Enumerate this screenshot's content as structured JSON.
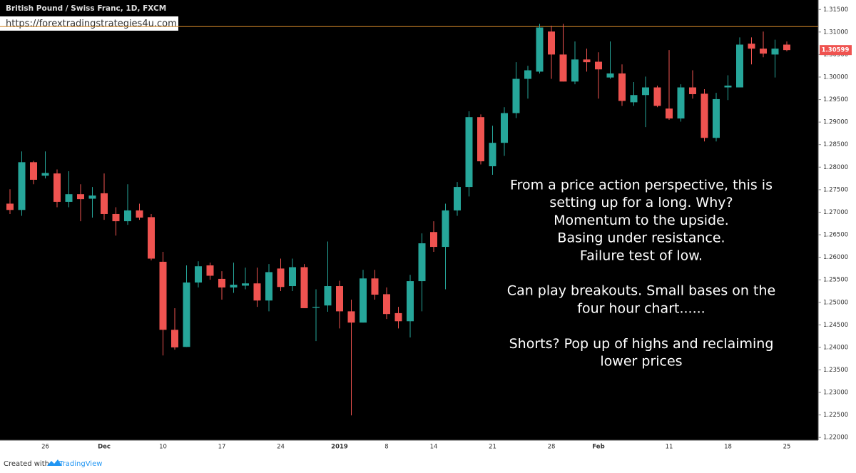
{
  "chart_data": {
    "type": "candlestick",
    "title": "British Pound / Swiss Franc, 1D, FXCM",
    "watermark": "https://forextradingstrategies4u.com",
    "footer": {
      "prefix": "Created with",
      "brand": "TradingView"
    },
    "categories": [
      null,
      null,
      null,
      "26",
      null,
      null,
      null,
      null,
      "Dec",
      null,
      null,
      null,
      null,
      "10",
      null,
      null,
      null,
      null,
      "17",
      null,
      null,
      null,
      null,
      "24",
      null,
      null,
      null,
      null,
      "2019",
      null,
      null,
      null,
      "8",
      null,
      null,
      null,
      "14",
      null,
      null,
      null,
      null,
      "21",
      null,
      null,
      null,
      null,
      "28",
      null,
      null,
      null,
      "Feb",
      null,
      null,
      null,
      null,
      null,
      "11",
      null,
      null,
      null,
      null,
      "18",
      null,
      null,
      null,
      null,
      "25"
    ],
    "open": [
      1.2719,
      1.2705,
      1.2811,
      1.2781,
      1.2786,
      1.2723,
      1.274,
      1.273,
      1.2742,
      1.2696,
      1.268,
      1.2704,
      1.2689,
      1.259,
      1.2439,
      1.2401,
      1.2544,
      1.2582,
      1.2552,
      1.2533,
      1.2537,
      1.2542,
      1.2504,
      1.2575,
      1.2536,
      1.2578,
      1.2488,
      1.2493,
      1.2536,
      1.248,
      1.2455,
      1.2553,
      1.2518,
      1.2476,
      1.2458,
      1.2547,
      1.2656,
      1.2623,
      1.2704,
      1.2756,
      1.2911,
      1.2802,
      1.2854,
      1.292,
      1.2996,
      1.3012,
      1.3101,
      1.305,
      1.299,
      1.3039,
      1.3034,
      1.2999,
      1.3008,
      1.2944,
      1.296,
      1.2977,
      1.293,
      1.2908,
      1.2977,
      1.2963,
      1.2865,
      1.2977,
      1.2977,
      1.3074,
      1.3063,
      1.305,
      1.3072
    ],
    "high": [
      1.2751,
      1.2835,
      1.2814,
      1.2835,
      1.2795,
      1.2791,
      1.2762,
      1.2756,
      1.2786,
      1.2711,
      1.2762,
      1.2719,
      1.2696,
      1.2612,
      1.2487,
      1.2582,
      1.2591,
      1.2588,
      1.2569,
      1.2588,
      1.2577,
      1.2577,
      1.2585,
      1.2597,
      1.2597,
      1.2585,
      1.2529,
      1.2635,
      1.2548,
      1.2506,
      1.2572,
      1.2572,
      1.2533,
      1.249,
      1.2561,
      1.2653,
      1.268,
      1.2719,
      1.2767,
      1.2924,
      1.2917,
      1.2892,
      1.2933,
      1.3033,
      1.3025,
      1.3118,
      1.3114,
      1.3118,
      1.3079,
      1.3063,
      1.3055,
      1.3079,
      1.3028,
      1.2989,
      1.3001,
      1.2981,
      1.306,
      1.2984,
      1.3015,
      1.2973,
      1.2965,
      1.3004,
      1.3088,
      1.3088,
      1.3101,
      1.3083,
      1.3079
    ],
    "low": [
      1.2696,
      1.2692,
      1.2762,
      1.2775,
      1.2711,
      1.2711,
      1.268,
      1.2688,
      1.2683,
      1.2648,
      1.2672,
      1.2683,
      1.2593,
      1.2382,
      1.2395,
      1.2401,
      1.2533,
      1.255,
      1.2506,
      1.2521,
      1.2529,
      1.249,
      1.248,
      1.2525,
      1.2525,
      1.2487,
      1.2414,
      1.2479,
      1.2442,
      1.2249,
      1.2455,
      1.2506,
      1.2463,
      1.2442,
      1.2422,
      1.248,
      1.2612,
      1.2529,
      1.2692,
      1.2735,
      1.2806,
      1.2783,
      1.2825,
      1.2909,
      1.2952,
      1.3008,
      1.2996,
      1.299,
      1.2984,
      1.3012,
      1.2952,
      1.2996,
      1.2936,
      1.2936,
      1.2889,
      1.2933,
      1.2905,
      1.2901,
      1.2952,
      1.2857,
      1.2857,
      1.2949,
      1.2977,
      1.3028,
      1.3044,
      1.2999,
      1.3057
    ],
    "close": [
      1.2705,
      1.2811,
      1.2772,
      1.2787,
      1.2723,
      1.274,
      1.2729,
      1.2737,
      1.2696,
      1.268,
      1.2704,
      1.2688,
      1.2597,
      1.2439,
      1.24,
      1.2544,
      1.258,
      1.2559,
      1.2533,
      1.2539,
      1.2542,
      1.2504,
      1.2567,
      1.2534,
      1.2578,
      1.2487,
      1.249,
      1.2536,
      1.248,
      1.2455,
      1.2553,
      1.2517,
      1.2474,
      1.2458,
      1.2547,
      1.2631,
      1.2623,
      1.2704,
      1.2756,
      1.2911,
      1.2813,
      1.2854,
      1.292,
      1.2996,
      1.3015,
      1.311,
      1.305,
      1.299,
      1.3039,
      1.3033,
      1.3017,
      1.3008,
      1.2947,
      1.296,
      1.2977,
      1.2936,
      1.2908,
      1.2977,
      1.2962,
      1.2865,
      1.2951,
      1.2981,
      1.3072,
      1.3063,
      1.3052,
      1.3063,
      1.30599
    ],
    "up_color": "#26a69a",
    "down_color": "#ef5350",
    "resistance": 1.3112,
    "resistance_color": "#d4892a",
    "ylim": [
      1.2194,
      1.3171
    ],
    "yticks": [
      {
        "value": 1.22,
        "label": "1.22000"
      },
      {
        "value": 1.225,
        "label": "1.22500"
      },
      {
        "value": 1.23,
        "label": "1.23000"
      },
      {
        "value": 1.235,
        "label": "1.23500"
      },
      {
        "value": 1.24,
        "label": "1.24000"
      },
      {
        "value": 1.245,
        "label": "1.24500"
      },
      {
        "value": 1.25,
        "label": "1.25000"
      },
      {
        "value": 1.255,
        "label": "1.25500"
      },
      {
        "value": 1.26,
        "label": "1.26000"
      },
      {
        "value": 1.265,
        "label": "1.26500"
      },
      {
        "value": 1.27,
        "label": "1.27000"
      },
      {
        "value": 1.275,
        "label": "1.27500"
      },
      {
        "value": 1.28,
        "label": "1.28000"
      },
      {
        "value": 1.285,
        "label": "1.28500"
      },
      {
        "value": 1.29,
        "label": "1.29000"
      },
      {
        "value": 1.295,
        "label": "1.29500"
      },
      {
        "value": 1.3,
        "label": "1.30000"
      },
      {
        "value": 1.305,
        "label": "1.30500"
      },
      {
        "value": 1.31,
        "label": "1.31000"
      },
      {
        "value": 1.315,
        "label": "1.31500"
      }
    ],
    "annotation": [
      [
        "From a price action perspective, this is",
        "setting up for a long.  Why?",
        "Momentum to the upside.",
        "Basing under resistance.",
        "Failure test of low."
      ],
      [
        "Can play breakouts.  Small bases on the",
        "four hour chart......"
      ],
      [
        "Shorts?  Pop up of highs and reclaiming",
        "lower prices"
      ]
    ]
  }
}
